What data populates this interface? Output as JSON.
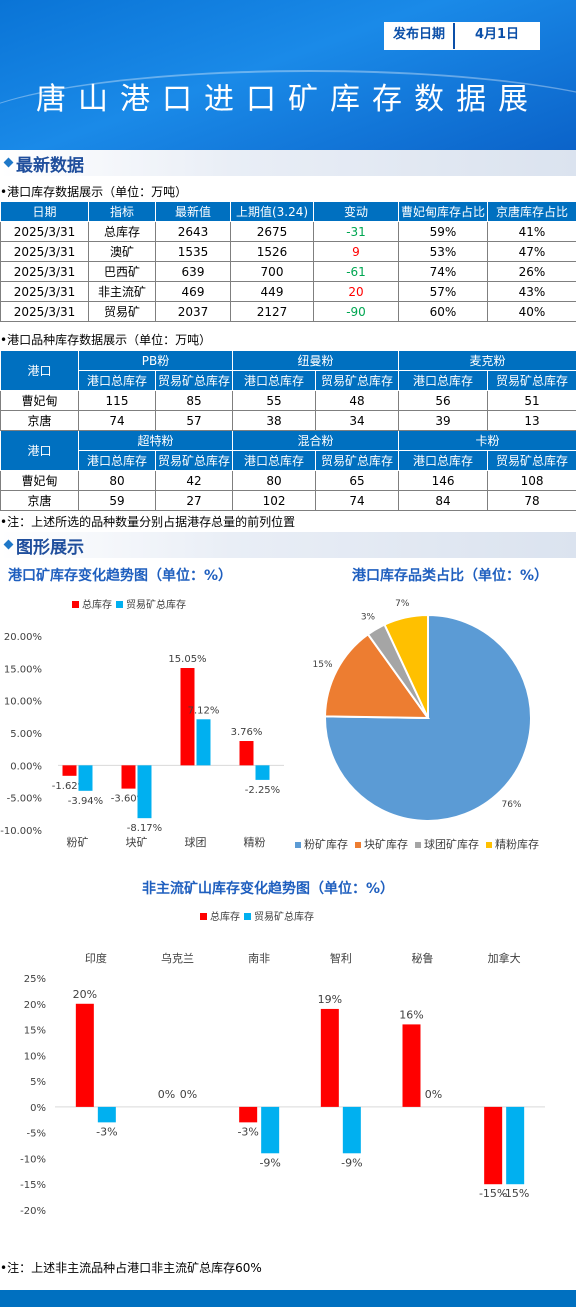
{
  "header": {
    "date_label": "发布日期",
    "date": "4月1日",
    "title": "唐山港口进口矿库存数据展"
  },
  "sections": [
    "最新数据",
    "图形展示"
  ],
  "tables": [
    {
      "caption": "•港口库存数据展示（单位：万吨）",
      "headers": [
        "日期",
        "指标",
        "最新值",
        "上期值(3.24)",
        "变动",
        "曹妃甸库存占比",
        "京唐库存占比"
      ],
      "rows": [
        [
          "2025/3/31",
          "总库存",
          2643,
          2675,
          -31,
          "59%",
          "41%"
        ],
        [
          "2025/3/31",
          "澳矿",
          1535,
          1526,
          9,
          "53%",
          "47%"
        ],
        [
          "2025/3/31",
          "巴西矿",
          639,
          700,
          -61,
          "74%",
          "26%"
        ],
        [
          "2025/3/31",
          "非主流矿",
          469,
          449,
          20,
          "57%",
          "43%"
        ],
        [
          "2025/3/31",
          "贸易矿",
          2037,
          2127,
          -90,
          "60%",
          "40%"
        ]
      ]
    },
    {
      "caption": "•港口品种库存数据展示（单位：万吨）",
      "blocks": [
        {
          "port_header": "港口",
          "groups": [
            "PB粉",
            "纽曼粉",
            "麦克粉"
          ],
          "sub_headers": [
            "港口总库存",
            "贸易矿总库存",
            "港口总库存",
            "贸易矿总库存",
            "港口总库存",
            "贸易矿总库存"
          ],
          "rows": [
            [
              "曹妃甸",
              115,
              85,
              55,
              48,
              56,
              51
            ],
            [
              "京唐",
              74,
              57,
              38,
              34,
              39,
              13
            ]
          ]
        },
        {
          "port_header": "港口",
          "groups": [
            "超特粉",
            "混合粉",
            "卡粉"
          ],
          "sub_headers": [
            "港口总库存",
            "贸易矿总库存",
            "港口总库存",
            "贸易矿总库存",
            "港口总库存",
            "贸易矿总库存"
          ],
          "rows": [
            [
              "曹妃甸",
              80,
              42,
              80,
              65,
              146,
              108
            ],
            [
              "京唐",
              59,
              27,
              102,
              74,
              84,
              78
            ]
          ]
        }
      ]
    }
  ],
  "notes": [
    "•注：上述所选的品种数量分别占据港存总量的前列位置",
    "•注：上述非主流品种占港口非主流矿总库存60%"
  ],
  "chart_data": [
    {
      "type": "bar",
      "title": "港口矿库存变化趋势图（单位：%）",
      "categories": [
        "粉矿",
        "块矿",
        "球团",
        "精粉"
      ],
      "series": [
        {
          "name": "总库存",
          "color": "#ff0000",
          "values": [
            -1.62,
            -3.6,
            15.05,
            3.76
          ],
          "value_labels": [
            "-1.62%",
            "-3.60%",
            "15.05%",
            "3.76%"
          ]
        },
        {
          "name": "贸易矿总库存",
          "color": "#00b0f0",
          "values": [
            -3.94,
            -8.17,
            7.12,
            -2.25
          ],
          "value_labels": [
            "-3.94%",
            "-8.17%",
            "7.12%",
            "-2.25%"
          ]
        }
      ],
      "ylim": [
        -10,
        20
      ],
      "yticks": [
        {
          "value": -10,
          "label": "-10.00%"
        },
        {
          "value": -5,
          "label": "-5.00%"
        },
        {
          "value": 0,
          "label": "0.00%"
        },
        {
          "value": 5,
          "label": "5.00%"
        },
        {
          "value": 10,
          "label": "10.00%"
        },
        {
          "value": 15,
          "label": "15.00%"
        },
        {
          "value": 20,
          "label": "20.00%"
        }
      ],
      "grid": false,
      "legend": "top",
      "category_labels": "bottom"
    },
    {
      "type": "pie",
      "title": "港口库存品类占比（单位：%）",
      "categories": [
        "粉矿库存",
        "块矿库存",
        "球团矿库存",
        "精粉库存"
      ],
      "values": [
        76,
        15,
        3,
        7
      ],
      "value_labels": [
        "76%",
        "15%",
        "3%",
        "7%"
      ],
      "colors": [
        "#5b9bd5",
        "#ed7d31",
        "#a5a5a5",
        "#ffc000"
      ],
      "legend": "bottom"
    },
    {
      "type": "bar",
      "title": "非主流矿山库存变化趋势图（单位：%）",
      "categories": [
        "印度",
        "乌克兰",
        "南非",
        "智利",
        "秘鲁",
        "加拿大"
      ],
      "series": [
        {
          "name": "总库存",
          "color": "#ff0000",
          "values": [
            20,
            0,
            -3,
            19,
            16,
            -15
          ],
          "value_labels": [
            "20%",
            "0%",
            "-3%",
            "19%",
            "16%",
            "-15%"
          ]
        },
        {
          "name": "贸易矿总库存",
          "color": "#00b0f0",
          "values": [
            -3,
            0,
            -9,
            -9,
            0,
            -15
          ],
          "value_labels": [
            "-3%",
            "0%",
            "-9%",
            "-9%",
            "0%",
            "-15%"
          ]
        }
      ],
      "ylim": [
        -20,
        25
      ],
      "yticks": [
        {
          "value": -20,
          "label": "-20%"
        },
        {
          "value": -15,
          "label": "-15%"
        },
        {
          "value": -10,
          "label": "-10%"
        },
        {
          "value": -5,
          "label": "-5%"
        },
        {
          "value": 0,
          "label": "0%"
        },
        {
          "value": 5,
          "label": "5%"
        },
        {
          "value": 10,
          "label": "10%"
        },
        {
          "value": 15,
          "label": "15%"
        },
        {
          "value": 20,
          "label": "20%"
        },
        {
          "value": 25,
          "label": "25%"
        }
      ],
      "grid": false,
      "legend": "top",
      "category_labels": "top"
    }
  ]
}
